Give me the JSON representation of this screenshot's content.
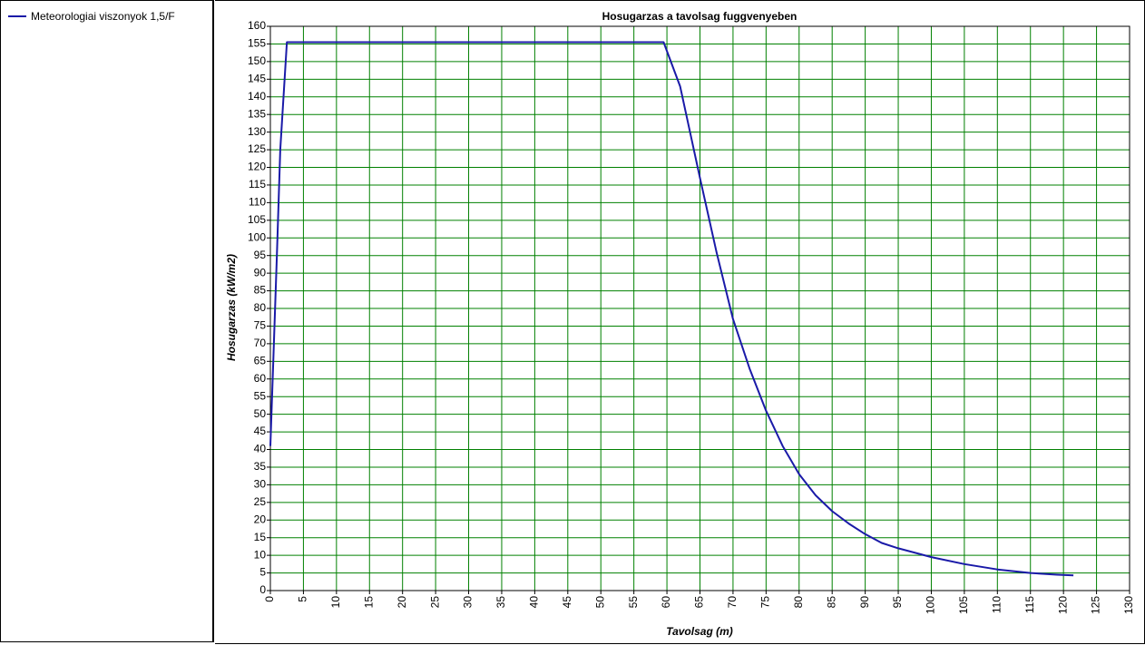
{
  "legend": {
    "entries": [
      {
        "label": "Meteorologiai viszonyok 1,5/F",
        "color": "#1a1aa8"
      }
    ]
  },
  "chart_data": {
    "type": "line",
    "title": "Hosugarzas a tavolsag fuggvenyeben",
    "xlabel": "Tavolsag (m)",
    "ylabel": "Hosugarzas (kW/m2)",
    "xlim": [
      0,
      130
    ],
    "ylim": [
      0,
      160
    ],
    "xticks": [
      0,
      5,
      10,
      15,
      20,
      25,
      30,
      35,
      40,
      45,
      50,
      55,
      60,
      65,
      70,
      75,
      80,
      85,
      90,
      95,
      100,
      105,
      110,
      115,
      120,
      125,
      130
    ],
    "yticks": [
      0,
      5,
      10,
      15,
      20,
      25,
      30,
      35,
      40,
      45,
      50,
      55,
      60,
      65,
      70,
      75,
      80,
      85,
      90,
      95,
      100,
      105,
      110,
      115,
      120,
      125,
      130,
      135,
      140,
      145,
      150,
      155,
      160
    ],
    "grid": true,
    "grid_color": "#008000",
    "legend_position": "left-panel",
    "series": [
      {
        "name": "Meteorologiai viszonyok 1,5/F",
        "color": "#1a1aa8",
        "x": [
          0,
          0.5,
          1,
          1.5,
          2.5,
          59.5,
          62,
          65,
          67.5,
          70,
          72.5,
          75,
          77.5,
          80,
          82.5,
          85,
          87.5,
          90,
          92.5,
          95,
          100,
          105,
          110,
          115,
          119,
          121.5
        ],
        "y": [
          41,
          68,
          96,
          125,
          155.5,
          155.5,
          143,
          117,
          96,
          77,
          63,
          51,
          41,
          33,
          27,
          22.5,
          19,
          16,
          13.5,
          12,
          9.5,
          7.5,
          6,
          5,
          4.5,
          4.3
        ]
      }
    ]
  }
}
